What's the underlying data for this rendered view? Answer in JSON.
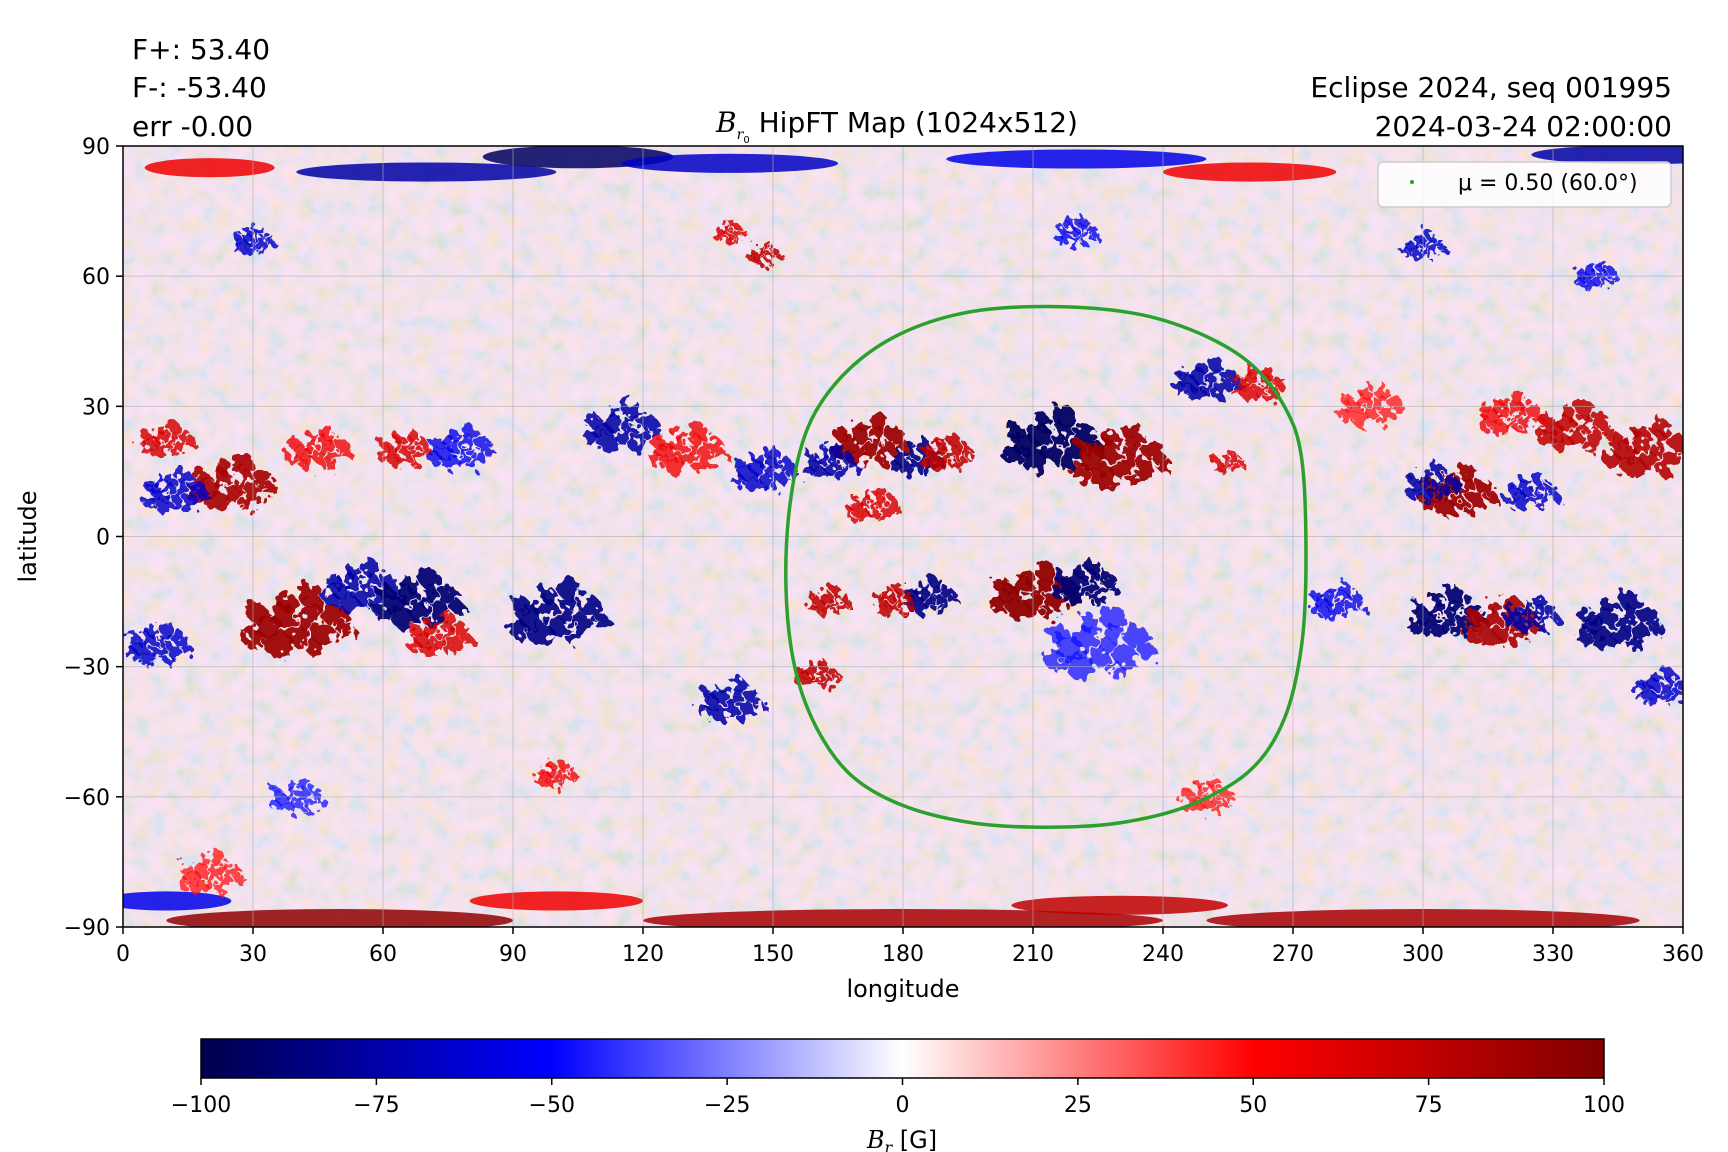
{
  "info": {
    "fplus": "F+: 53.40",
    "fminus": "F-: -53.40",
    "err": "err -0.00",
    "seq": "Eclipse 2024, seq 001995",
    "date": "2024-03-24 02:00:00"
  },
  "chart_data": {
    "type": "heatmap",
    "title": {
      "symbol": "B",
      "subscript": "r",
      "subsubscript": "0",
      "text": " HipFT Map (1024x512)"
    },
    "xlabel": "longitude",
    "ylabel": "latitude",
    "xlim": [
      0,
      360
    ],
    "ylim": [
      -90,
      90
    ],
    "xticks": [
      0,
      30,
      60,
      90,
      120,
      150,
      180,
      210,
      240,
      270,
      300,
      330,
      360
    ],
    "yticks": [
      -90,
      -60,
      -30,
      0,
      30,
      60,
      90
    ],
    "grid": true,
    "legend": {
      "position": "top-right",
      "label": "μ = 0.50 (60.0°)",
      "color": "#2ca02c"
    },
    "contour": {
      "name": "μ = 0.50 (60.0°)",
      "color": "#2ca02c",
      "points": [
        [
          213,
          53
        ],
        [
          233,
          51.5
        ],
        [
          248,
          47
        ],
        [
          260,
          40
        ],
        [
          268,
          30
        ],
        [
          272,
          18
        ],
        [
          273,
          -5
        ],
        [
          272,
          -25
        ],
        [
          268,
          -42
        ],
        [
          260,
          -54
        ],
        [
          246,
          -62
        ],
        [
          230,
          -66
        ],
        [
          213,
          -67
        ],
        [
          196,
          -66
        ],
        [
          180,
          -62
        ],
        [
          168,
          -55
        ],
        [
          160,
          -44
        ],
        [
          155,
          -30
        ],
        [
          153,
          -12
        ],
        [
          154,
          8
        ],
        [
          158,
          25
        ],
        [
          166,
          37
        ],
        [
          178,
          46
        ],
        [
          194,
          51.5
        ],
        [
          213,
          53
        ]
      ]
    },
    "colorbar": {
      "label_symbol": "B",
      "label_sub": "r",
      "label_unit": " [G]",
      "range": [
        -100,
        100
      ],
      "ticks": [
        -100,
        -75,
        -50,
        -25,
        0,
        25,
        50,
        75,
        100
      ],
      "colormap": [
        "#00004c",
        "#0000ff",
        "#ffffff",
        "#ff0000",
        "#800000"
      ]
    },
    "regions": [
      {
        "lon": 172,
        "lat": 22,
        "sign": 1,
        "strength": 0.95,
        "size": 7
      },
      {
        "lon": 183,
        "lat": 18,
        "sign": -1,
        "strength": 0.9,
        "size": 5
      },
      {
        "lon": 190,
        "lat": 19,
        "sign": 1,
        "strength": 0.8,
        "size": 5
      },
      {
        "lon": 214,
        "lat": 22,
        "sign": -1,
        "strength": 1.0,
        "size": 9
      },
      {
        "lon": 230,
        "lat": 18,
        "sign": 1,
        "strength": 0.95,
        "size": 9
      },
      {
        "lon": 255,
        "lat": 17,
        "sign": 1,
        "strength": 0.7,
        "size": 3
      },
      {
        "lon": 250,
        "lat": 36,
        "sign": -1,
        "strength": 0.8,
        "size": 6
      },
      {
        "lon": 262,
        "lat": 35,
        "sign": 1,
        "strength": 0.7,
        "size": 5
      },
      {
        "lon": 163,
        "lat": 17,
        "sign": -1,
        "strength": 0.8,
        "size": 5
      },
      {
        "lon": 173,
        "lat": 7,
        "sign": 1,
        "strength": 0.7,
        "size": 5
      },
      {
        "lon": 210,
        "lat": -13,
        "sign": 1,
        "strength": 1.0,
        "size": 8
      },
      {
        "lon": 222,
        "lat": -11,
        "sign": -1,
        "strength": 0.95,
        "size": 6
      },
      {
        "lon": 186,
        "lat": -14,
        "sign": -1,
        "strength": 0.9,
        "size": 5
      },
      {
        "lon": 178,
        "lat": -15,
        "sign": 1,
        "strength": 0.8,
        "size": 4
      },
      {
        "lon": 163,
        "lat": -15,
        "sign": 1,
        "strength": 0.8,
        "size": 4
      },
      {
        "lon": 225,
        "lat": -25,
        "sign": -1,
        "strength": 0.5,
        "size": 10
      },
      {
        "lon": 160,
        "lat": -32,
        "sign": 1,
        "strength": 0.8,
        "size": 4
      },
      {
        "lon": 140,
        "lat": -38,
        "sign": -1,
        "strength": 0.8,
        "size": 6
      },
      {
        "lon": 25,
        "lat": 12,
        "sign": 1,
        "strength": 0.9,
        "size": 8
      },
      {
        "lon": 12,
        "lat": 10,
        "sign": -1,
        "strength": 0.7,
        "size": 6
      },
      {
        "lon": 10,
        "lat": 22,
        "sign": 1,
        "strength": 0.7,
        "size": 5
      },
      {
        "lon": 45,
        "lat": 20,
        "sign": 1,
        "strength": 0.6,
        "size": 6
      },
      {
        "lon": 40,
        "lat": -20,
        "sign": 1,
        "strength": 0.95,
        "size": 10
      },
      {
        "lon": 55,
        "lat": -12,
        "sign": -1,
        "strength": 0.8,
        "size": 7
      },
      {
        "lon": 68,
        "lat": -15,
        "sign": -1,
        "strength": 0.95,
        "size": 8
      },
      {
        "lon": 73,
        "lat": -23,
        "sign": 1,
        "strength": 0.7,
        "size": 6
      },
      {
        "lon": 65,
        "lat": 20,
        "sign": 1,
        "strength": 0.7,
        "size": 5
      },
      {
        "lon": 78,
        "lat": 20,
        "sign": -1,
        "strength": 0.6,
        "size": 6
      },
      {
        "lon": 100,
        "lat": -18,
        "sign": -1,
        "strength": 0.9,
        "size": 9
      },
      {
        "lon": 115,
        "lat": 25,
        "sign": -1,
        "strength": 0.8,
        "size": 7
      },
      {
        "lon": 130,
        "lat": 20,
        "sign": 1,
        "strength": 0.6,
        "size": 7
      },
      {
        "lon": 148,
        "lat": 15,
        "sign": -1,
        "strength": 0.7,
        "size": 6
      },
      {
        "lon": 8,
        "lat": -25,
        "sign": -1,
        "strength": 0.7,
        "size": 6
      },
      {
        "lon": 308,
        "lat": 10,
        "sign": 1,
        "strength": 0.95,
        "size": 7
      },
      {
        "lon": 302,
        "lat": 12,
        "sign": -1,
        "strength": 0.8,
        "size": 5
      },
      {
        "lon": 305,
        "lat": -18,
        "sign": -1,
        "strength": 0.95,
        "size": 7
      },
      {
        "lon": 318,
        "lat": -20,
        "sign": 1,
        "strength": 0.9,
        "size": 7
      },
      {
        "lon": 325,
        "lat": -18,
        "sign": -1,
        "strength": 0.8,
        "size": 5
      },
      {
        "lon": 345,
        "lat": -20,
        "sign": -1,
        "strength": 0.9,
        "size": 8
      },
      {
        "lon": 352,
        "lat": 20,
        "sign": 1,
        "strength": 0.85,
        "size": 8
      },
      {
        "lon": 335,
        "lat": 25,
        "sign": 1,
        "strength": 0.8,
        "size": 7
      },
      {
        "lon": 320,
        "lat": 28,
        "sign": 1,
        "strength": 0.6,
        "size": 6
      },
      {
        "lon": 325,
        "lat": 10,
        "sign": -1,
        "strength": 0.7,
        "size": 5
      },
      {
        "lon": 288,
        "lat": 30,
        "sign": 1,
        "strength": 0.5,
        "size": 6
      },
      {
        "lon": 280,
        "lat": -15,
        "sign": -1,
        "strength": 0.6,
        "size": 5
      },
      {
        "lon": 355,
        "lat": -35,
        "sign": -1,
        "strength": 0.7,
        "size": 5
      },
      {
        "lon": 140,
        "lat": 70,
        "sign": 1,
        "strength": 0.7,
        "size": 3
      },
      {
        "lon": 148,
        "lat": 65,
        "sign": 1,
        "strength": 0.8,
        "size": 3
      },
      {
        "lon": 30,
        "lat": 68,
        "sign": -1,
        "strength": 0.7,
        "size": 4
      },
      {
        "lon": 220,
        "lat": 70,
        "sign": -1,
        "strength": 0.6,
        "size": 4
      },
      {
        "lon": 300,
        "lat": 67,
        "sign": -1,
        "strength": 0.7,
        "size": 4
      },
      {
        "lon": 340,
        "lat": 60,
        "sign": -1,
        "strength": 0.6,
        "size": 4
      },
      {
        "lon": 100,
        "lat": -55,
        "sign": 1,
        "strength": 0.6,
        "size": 4
      },
      {
        "lon": 250,
        "lat": -60,
        "sign": 1,
        "strength": 0.5,
        "size": 5
      },
      {
        "lon": 40,
        "lat": -60,
        "sign": -1,
        "strength": 0.5,
        "size": 5
      },
      {
        "lon": 20,
        "lat": -78,
        "sign": 1,
        "strength": 0.5,
        "size": 6
      }
    ],
    "polar_bands": [
      {
        "lon": 105,
        "lat": 87.5,
        "sign": -1,
        "strength": 1.0,
        "width": 22,
        "thick": 1.2
      },
      {
        "lon": 70,
        "lat": 84,
        "sign": -1,
        "strength": 0.8,
        "width": 30,
        "thick": 1.0
      },
      {
        "lon": 140,
        "lat": 86,
        "sign": -1,
        "strength": 0.7,
        "width": 25,
        "thick": 1.0
      },
      {
        "lon": 20,
        "lat": 85,
        "sign": 1,
        "strength": 0.6,
        "width": 15,
        "thick": 1.0
      },
      {
        "lon": 350,
        "lat": 88,
        "sign": -1,
        "strength": 0.8,
        "width": 25,
        "thick": 1.0
      },
      {
        "lon": 220,
        "lat": 87,
        "sign": -1,
        "strength": 0.6,
        "width": 30,
        "thick": 1.0
      },
      {
        "lon": 260,
        "lat": 84,
        "sign": 1,
        "strength": 0.6,
        "width": 20,
        "thick": 1.0
      },
      {
        "lon": 50,
        "lat": -88.5,
        "sign": 1,
        "strength": 1.0,
        "width": 40,
        "thick": 1.2
      },
      {
        "lon": 180,
        "lat": -88.5,
        "sign": 1,
        "strength": 0.9,
        "width": 60,
        "thick": 1.2
      },
      {
        "lon": 300,
        "lat": -88.5,
        "sign": 1,
        "strength": 0.9,
        "width": 50,
        "thick": 1.2
      },
      {
        "lon": 230,
        "lat": -85,
        "sign": 1,
        "strength": 0.8,
        "width": 25,
        "thick": 1.0
      },
      {
        "lon": 100,
        "lat": -84,
        "sign": 1,
        "strength": 0.6,
        "width": 20,
        "thick": 1.0
      },
      {
        "lon": 10,
        "lat": -84,
        "sign": -1,
        "strength": 0.6,
        "width": 15,
        "thick": 1.0
      }
    ]
  }
}
